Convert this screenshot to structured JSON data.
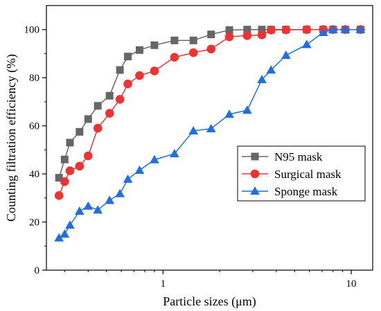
{
  "chart_data": {
    "type": "line",
    "xlabel": "Particle sizes (μm)",
    "ylabel": "Counting filtration efficiency (%)",
    "x_scale": "log",
    "xlim": [
      0.24,
      13
    ],
    "ylim": [
      0,
      110
    ],
    "x_ticks": [
      1,
      10
    ],
    "y_ticks": [
      0,
      20,
      40,
      60,
      80,
      100
    ],
    "grid": false,
    "legend_position": "center-right",
    "series": [
      {
        "name": "N95 mask",
        "color": "#666666",
        "marker": "square",
        "points": [
          [
            0.28,
            38.4
          ],
          [
            0.3,
            46
          ],
          [
            0.32,
            53
          ],
          [
            0.36,
            57.5
          ],
          [
            0.4,
            62.8
          ],
          [
            0.45,
            68.3
          ],
          [
            0.52,
            72.5
          ],
          [
            0.59,
            83.2
          ],
          [
            0.65,
            88.8
          ],
          [
            0.75,
            91.5
          ],
          [
            0.9,
            93.5
          ],
          [
            1.15,
            95.5
          ],
          [
            1.45,
            95.5
          ],
          [
            1.8,
            98
          ],
          [
            2.25,
            99.8
          ],
          [
            2.8,
            100
          ],
          [
            3.35,
            100
          ],
          [
            3.75,
            100
          ],
          [
            4.5,
            100
          ],
          [
            5.8,
            100
          ],
          [
            7.1,
            100
          ],
          [
            8.0,
            100
          ],
          [
            9.3,
            100
          ],
          [
            11.2,
            100
          ]
        ]
      },
      {
        "name": "Surgical mask",
        "color": "#ee3333",
        "marker": "circle",
        "points": [
          [
            0.28,
            31
          ],
          [
            0.3,
            36.8
          ],
          [
            0.32,
            41.3
          ],
          [
            0.36,
            43.2
          ],
          [
            0.4,
            47.5
          ],
          [
            0.45,
            59
          ],
          [
            0.52,
            65.2
          ],
          [
            0.59,
            71
          ],
          [
            0.65,
            77.4
          ],
          [
            0.75,
            80.9
          ],
          [
            0.9,
            82.8
          ],
          [
            1.15,
            88.5
          ],
          [
            1.45,
            90.4
          ],
          [
            1.8,
            91.9
          ],
          [
            2.25,
            97
          ],
          [
            2.8,
            97.5
          ],
          [
            3.35,
            97.8
          ],
          [
            3.75,
            99.8
          ],
          [
            4.5,
            99.9
          ],
          [
            5.8,
            100
          ],
          [
            7.1,
            100
          ],
          [
            8.0,
            100
          ],
          [
            9.3,
            100
          ],
          [
            11.2,
            100
          ]
        ]
      },
      {
        "name": "Sponge mask",
        "color": "#1f6fe0",
        "marker": "triangle",
        "points": [
          [
            0.28,
            13.4
          ],
          [
            0.3,
            15
          ],
          [
            0.32,
            18.7
          ],
          [
            0.36,
            24.5
          ],
          [
            0.4,
            26.6
          ],
          [
            0.45,
            25
          ],
          [
            0.52,
            29
          ],
          [
            0.59,
            31.8
          ],
          [
            0.65,
            37.8
          ],
          [
            0.75,
            41.5
          ],
          [
            0.9,
            45.9
          ],
          [
            1.15,
            48.4
          ],
          [
            1.45,
            57.9
          ],
          [
            1.8,
            58.8
          ],
          [
            2.25,
            64.8
          ],
          [
            2.8,
            66.5
          ],
          [
            3.35,
            79.2
          ],
          [
            3.75,
            83.2
          ],
          [
            4.5,
            89.3
          ],
          [
            5.8,
            93.8
          ],
          [
            7.1,
            98.8
          ],
          [
            8.0,
            100
          ],
          [
            9.3,
            100
          ],
          [
            11.2,
            100
          ]
        ]
      }
    ]
  }
}
